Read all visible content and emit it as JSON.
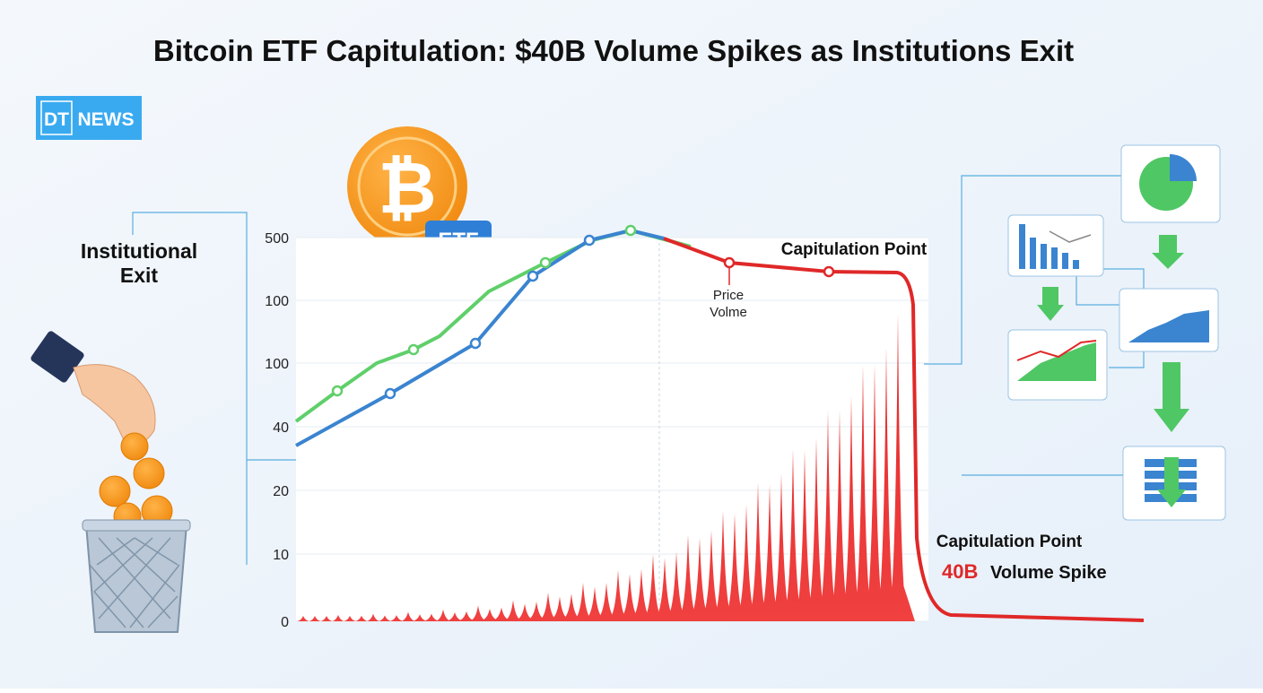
{
  "header": {
    "title": "Bitcoin ETF Capitulation: $40B Volume Spikes as Institutions Exit"
  },
  "logo": {
    "left": "DT",
    "right": "NEWS"
  },
  "badge": "ETF",
  "side_label": [
    "Institutional",
    "Exit"
  ],
  "axis_labels": [
    "500",
    "100",
    "100",
    "40",
    "20",
    "10",
    "0"
  ],
  "annotations": {
    "top": "Capitulation Point",
    "marker": [
      "Price",
      "Volme"
    ],
    "bottom_title": "Capitulation Point",
    "bottom_value": "40B",
    "bottom_text": "Volume Spike"
  }
}
